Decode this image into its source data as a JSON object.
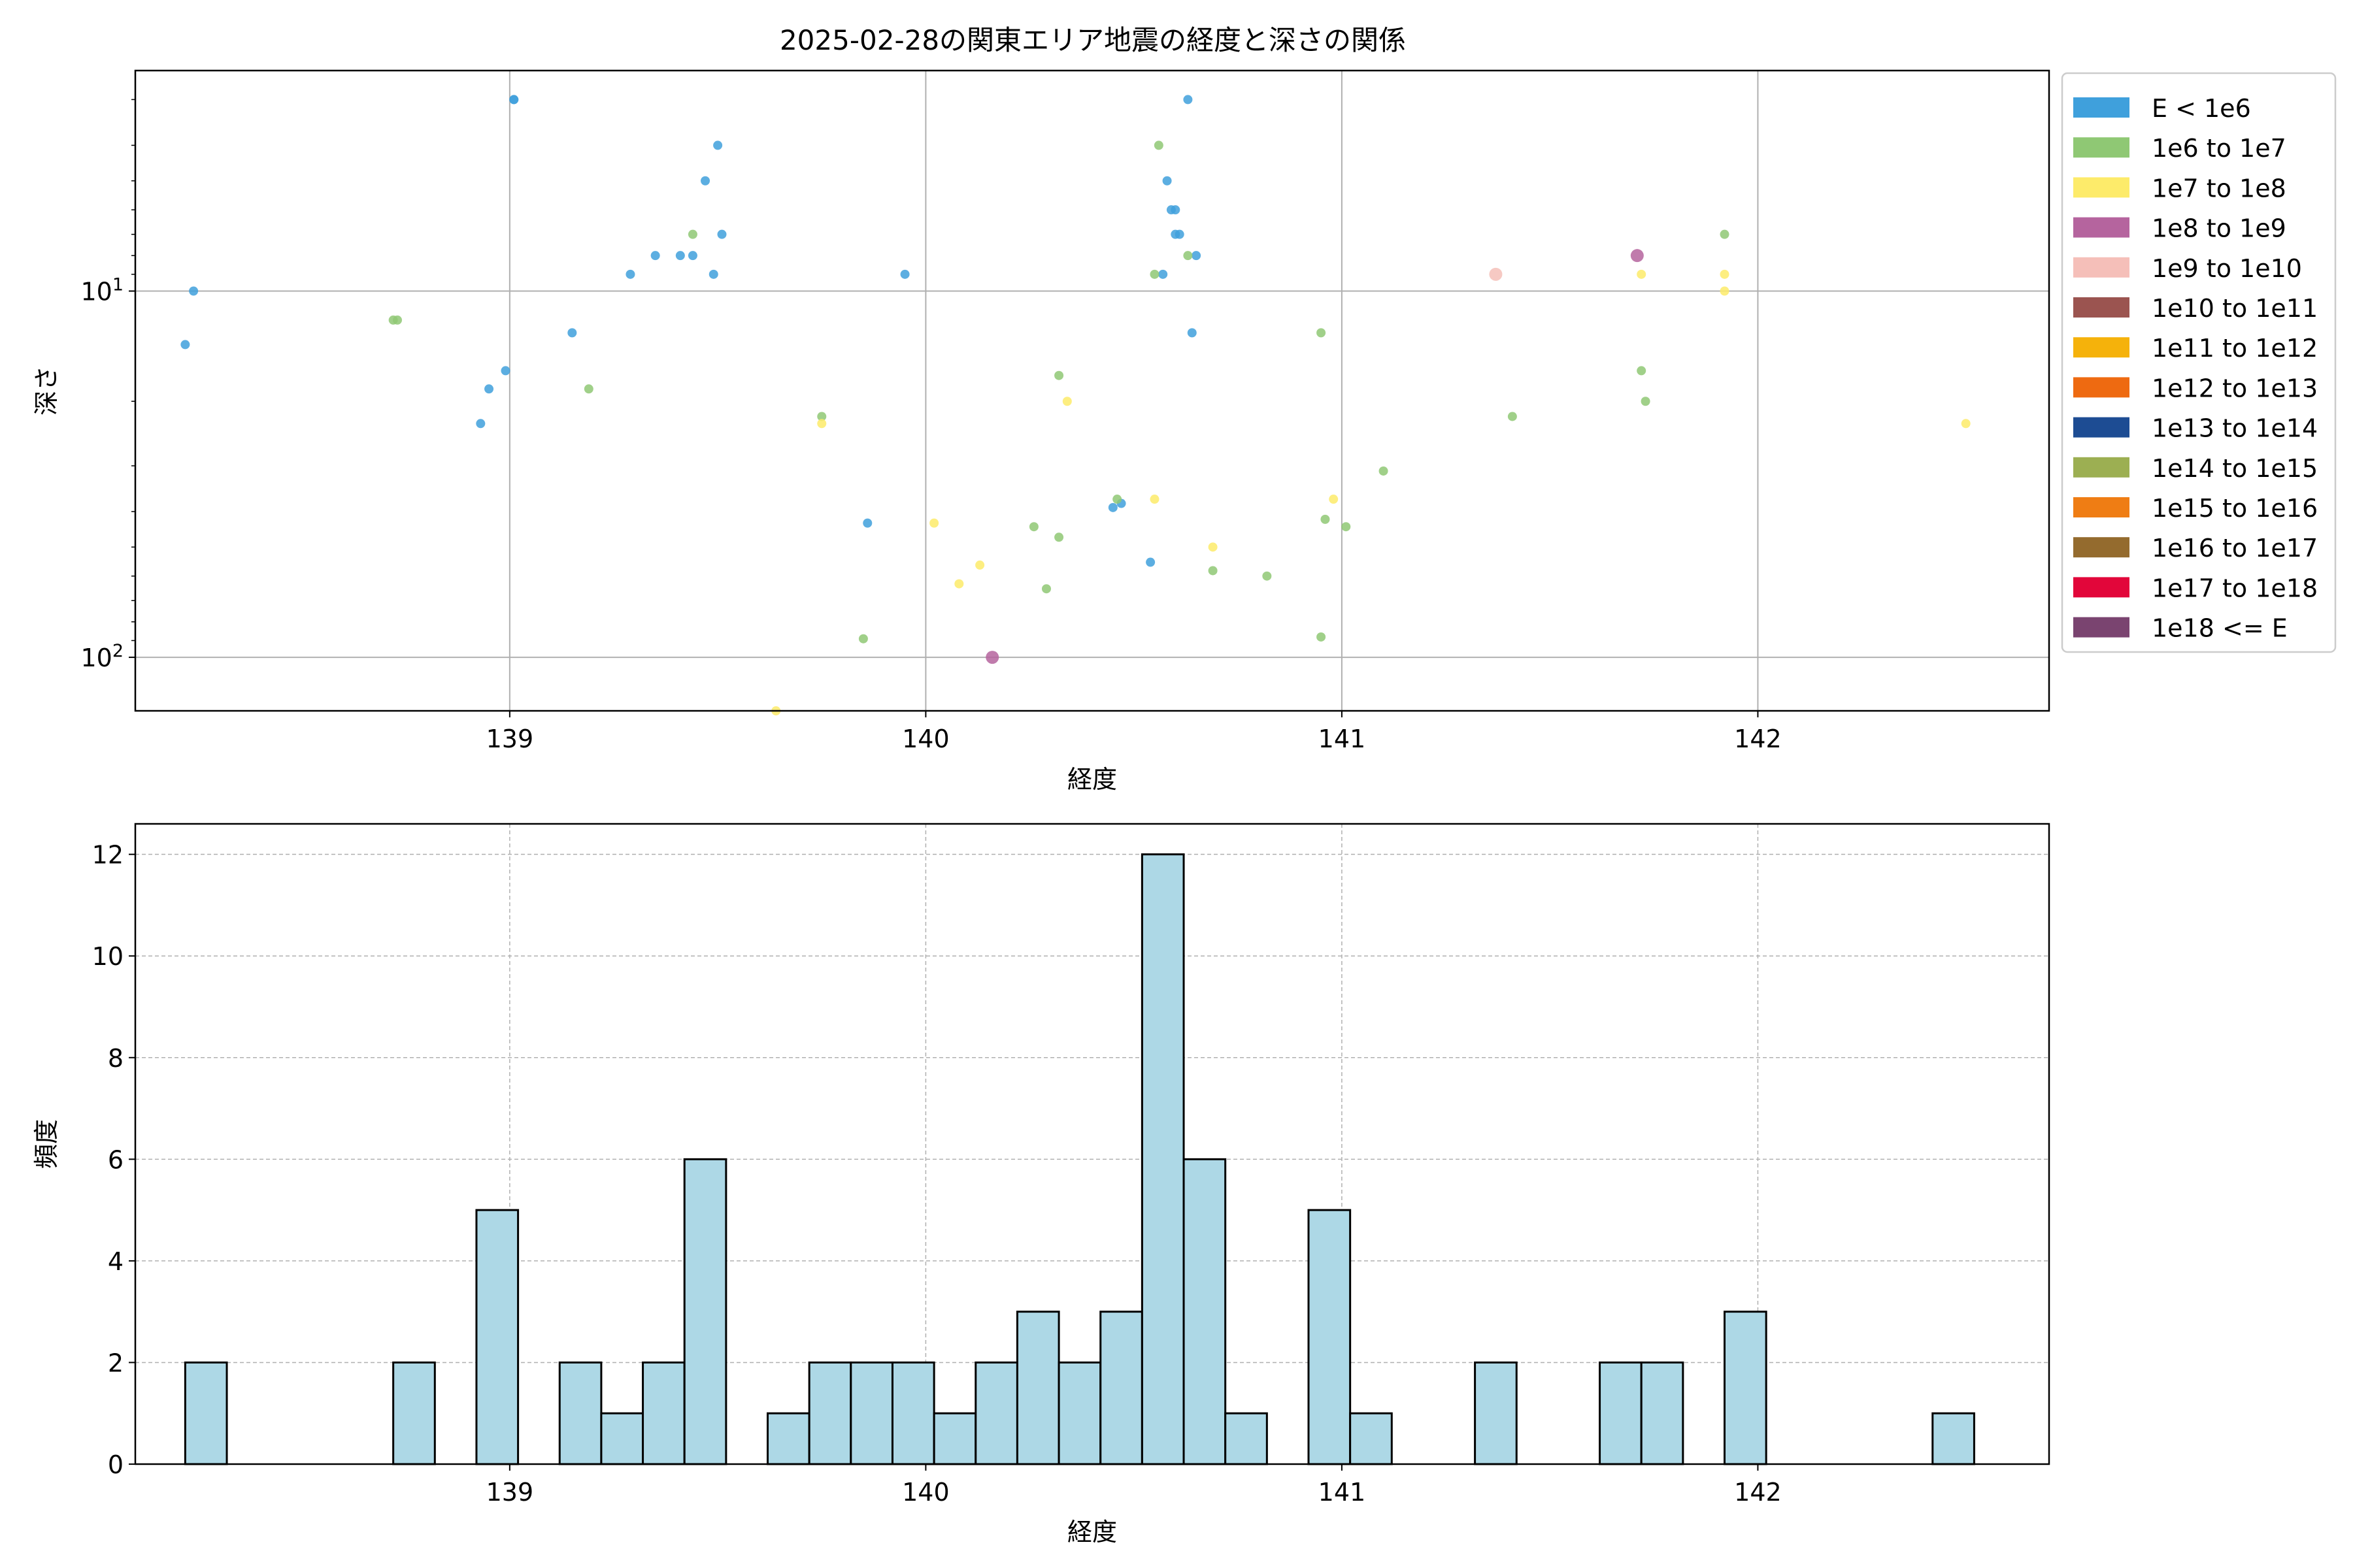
{
  "chart_data": [
    {
      "type": "scatter",
      "title": "2025-02-28の関東エリア地震の経度と深さの関係",
      "xlabel": "経度",
      "ylabel": "深さ",
      "xlim": [
        138.1,
        142.7
      ],
      "ylim": [
        140,
        2.5
      ],
      "y_scale": "log",
      "y_inverted": true,
      "grid": true,
      "legend_position": "outside-right",
      "x_ticks": [
        {
          "value": 139,
          "label": "139"
        },
        {
          "value": 140,
          "label": "140"
        },
        {
          "value": 141,
          "label": "141"
        },
        {
          "value": 142,
          "label": "142"
        }
      ],
      "y_ticks": [
        {
          "value": 10,
          "base": "10",
          "exp": "1"
        },
        {
          "value": 100,
          "base": "10",
          "exp": "2"
        }
      ],
      "legend": [
        {
          "label": "E < 1e6",
          "color": "#3fa0dc"
        },
        {
          "label": "1e6 to 1e7",
          "color": "#8fc874"
        },
        {
          "label": "1e7 to 1e8",
          "color": "#fdeb6a"
        },
        {
          "label": "1e8 to 1e9",
          "color": "#b5649e"
        },
        {
          "label": "1e9 to 1e10",
          "color": "#f5bfb9"
        },
        {
          "label": "1e10 to 1e11",
          "color": "#9b5450"
        },
        {
          "label": "1e11 to 1e12",
          "color": "#f5b20b"
        },
        {
          "label": "1e12 to 1e13",
          "color": "#ee6a11"
        },
        {
          "label": "1e13 to 1e14",
          "color": "#1d4c93"
        },
        {
          "label": "1e14 to 1e15",
          "color": "#9caf52"
        },
        {
          "label": "1e15 to 1e16",
          "color": "#ef7d14"
        },
        {
          "label": "1e16 to 1e17",
          "color": "#946b2e"
        },
        {
          "label": "1e17 to 1e18",
          "color": "#e2063a"
        },
        {
          "label": "1e18 <= E",
          "color": "#7a4470"
        }
      ],
      "series": [
        {
          "energy_class": "E < 1e6",
          "color": "#3fa0dc",
          "points": [
            [
              138.22,
              14
            ],
            [
              138.24,
              10
            ],
            [
              138.93,
              23
            ],
            [
              138.95,
              18.5
            ],
            [
              138.99,
              16.5
            ],
            [
              139.01,
              3.0
            ],
            [
              139.01,
              3.0
            ],
            [
              139.15,
              13
            ],
            [
              139.29,
              9
            ],
            [
              139.35,
              8
            ],
            [
              139.41,
              8
            ],
            [
              139.44,
              8
            ],
            [
              139.47,
              5
            ],
            [
              139.49,
              9
            ],
            [
              139.5,
              4
            ],
            [
              139.51,
              7
            ],
            [
              139.86,
              43
            ],
            [
              139.95,
              9
            ],
            [
              140.45,
              39
            ],
            [
              140.47,
              38
            ],
            [
              140.54,
              55
            ],
            [
              140.57,
              9
            ],
            [
              140.58,
              5
            ],
            [
              140.59,
              6
            ],
            [
              140.6,
              6
            ],
            [
              140.6,
              7
            ],
            [
              140.61,
              7
            ],
            [
              140.63,
              3.0
            ],
            [
              140.64,
              13
            ],
            [
              140.65,
              8
            ]
          ]
        },
        {
          "energy_class": "1e6 to 1e7",
          "color": "#8fc874",
          "points": [
            [
              138.72,
              12
            ],
            [
              138.73,
              12
            ],
            [
              139.19,
              18.5
            ],
            [
              139.44,
              7
            ],
            [
              139.75,
              22
            ],
            [
              139.85,
              89
            ],
            [
              140.26,
              44
            ],
            [
              140.29,
              65
            ],
            [
              140.32,
              47
            ],
            [
              140.32,
              17
            ],
            [
              140.46,
              37
            ],
            [
              140.55,
              9
            ],
            [
              140.56,
              4
            ],
            [
              140.63,
              8
            ],
            [
              140.69,
              58
            ],
            [
              140.82,
              60
            ],
            [
              140.95,
              13
            ],
            [
              140.95,
              88
            ],
            [
              140.96,
              42
            ],
            [
              141.01,
              44
            ],
            [
              141.1,
              31
            ],
            [
              141.41,
              22
            ],
            [
              141.72,
              16.5
            ],
            [
              141.73,
              20
            ],
            [
              141.92,
              7
            ]
          ]
        },
        {
          "energy_class": "1e7 to 1e8",
          "color": "#fdeb6a",
          "points": [
            [
              139.64,
              140
            ],
            [
              139.75,
              23
            ],
            [
              140.02,
              43
            ],
            [
              140.08,
              63
            ],
            [
              140.13,
              56
            ],
            [
              140.34,
              20
            ],
            [
              140.55,
              37
            ],
            [
              140.69,
              50
            ],
            [
              140.98,
              37
            ],
            [
              141.72,
              9
            ],
            [
              141.92,
              9
            ],
            [
              141.92,
              10
            ],
            [
              142.5,
              23
            ]
          ]
        },
        {
          "energy_class": "1e8 to 1e9",
          "color": "#b5649e",
          "points": [
            [
              140.16,
              100
            ],
            [
              141.71,
              8
            ]
          ]
        },
        {
          "energy_class": "1e9 to 1e10",
          "color": "#f5bfb9",
          "points": [
            [
              141.37,
              9
            ]
          ]
        }
      ]
    },
    {
      "type": "bar",
      "subtype": "histogram",
      "xlabel": "経度",
      "ylabel": "頻度",
      "xlim": [
        138.1,
        142.7
      ],
      "ylim": [
        0,
        12.6
      ],
      "bar_color": "#add8e6",
      "grid": true,
      "x_ticks": [
        {
          "value": 139,
          "label": "139"
        },
        {
          "value": 140,
          "label": "140"
        },
        {
          "value": 141,
          "label": "141"
        },
        {
          "value": 142,
          "label": "142"
        }
      ],
      "y_ticks": [
        {
          "value": 0,
          "label": "0"
        },
        {
          "value": 2,
          "label": "2"
        },
        {
          "value": 4,
          "label": "4"
        },
        {
          "value": 6,
          "label": "6"
        },
        {
          "value": 8,
          "label": "8"
        },
        {
          "value": 10,
          "label": "10"
        },
        {
          "value": 12,
          "label": "12"
        }
      ],
      "bin_edges": [
        138.22,
        138.32,
        138.42,
        138.52,
        138.62,
        138.72,
        138.82,
        138.92,
        139.02,
        139.12,
        139.22,
        139.32,
        139.42,
        139.52,
        139.62,
        139.72,
        139.82,
        139.92,
        140.02,
        140.12,
        140.22,
        140.32,
        140.42,
        140.52,
        140.62,
        140.72,
        140.82,
        140.92,
        141.02,
        141.12,
        141.22,
        141.32,
        141.42,
        141.52,
        141.62,
        141.72,
        141.82,
        141.92,
        142.02,
        142.12,
        142.22,
        142.32,
        142.42,
        142.52
      ],
      "values": [
        2,
        0,
        0,
        0,
        0,
        2,
        0,
        5,
        0,
        2,
        1,
        2,
        6,
        0,
        1,
        2,
        2,
        2,
        1,
        2,
        3,
        2,
        3,
        12,
        6,
        1,
        0,
        5,
        1,
        0,
        0,
        2,
        0,
        0,
        2,
        2,
        0,
        3,
        0,
        0,
        0,
        0,
        1
      ]
    }
  ]
}
